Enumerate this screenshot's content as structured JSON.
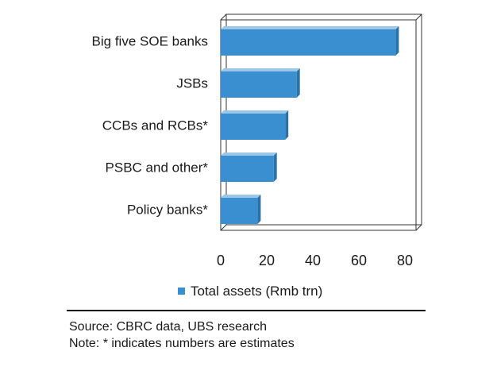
{
  "chart_data": {
    "type": "bar",
    "orientation": "horizontal",
    "style": "3d",
    "categories": [
      "Big five SOE banks",
      "JSBs",
      "CCBs and RCBs*",
      "PSBC and other*",
      "Policy banks*"
    ],
    "series": [
      {
        "name": "Total assets (Rmb trn)",
        "values": [
          76,
          33,
          28,
          23,
          16
        ]
      }
    ],
    "xlim": [
      0,
      80
    ],
    "xticks": [
      0,
      20,
      40,
      60,
      80
    ],
    "xlabel": "",
    "ylabel": "",
    "grid": false,
    "legend_position": "bottom",
    "colors": {
      "bar": "#3a8fd0",
      "bar_top": "#9dc7e6",
      "bar_side": "#2b72a8",
      "frame": "#333333"
    }
  },
  "notes": {
    "source": "Source:  CBRC data, UBS research",
    "note": "Note: * indicates numbers are estimates"
  }
}
